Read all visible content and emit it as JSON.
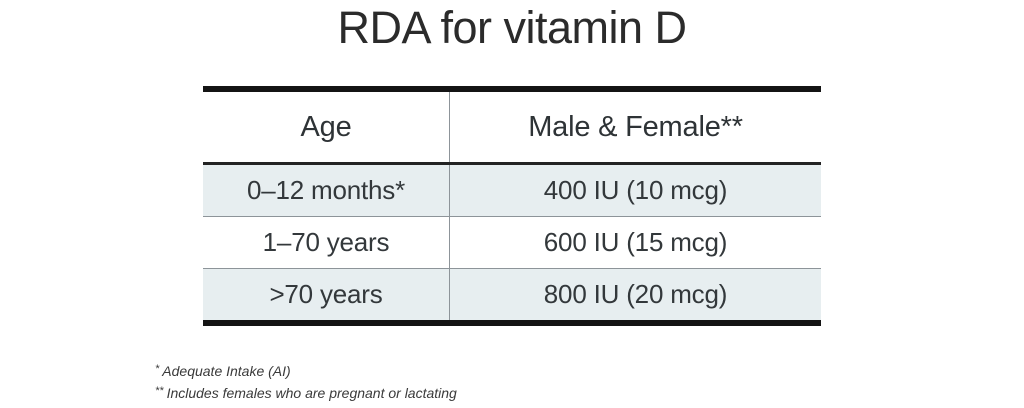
{
  "chart_data": {
    "type": "table",
    "title": "RDA for vitamin D",
    "columns": [
      "Age",
      "Male & Female**"
    ],
    "rows": [
      [
        "0–12 months*",
        "400 IU (10 mcg)"
      ],
      [
        "1–70 years",
        "600 IU (15 mcg)"
      ],
      [
        ">70 years",
        "800 IU (20 mcg)"
      ]
    ],
    "footnotes": [
      {
        "marker": "*",
        "text": "Adequate Intake (AI)"
      },
      {
        "marker": "**",
        "text": "Includes females who are pregnant or lactating"
      }
    ],
    "layout_hints": {
      "shaded_row_indexes": [
        0,
        2
      ],
      "legend_position": "none",
      "grid": "horizontal-dividers"
    },
    "colors": {
      "row_shade": "#e7eef0",
      "border_dark": "#141414",
      "divider_gray": "#8d9499",
      "text": "#33383b"
    }
  }
}
